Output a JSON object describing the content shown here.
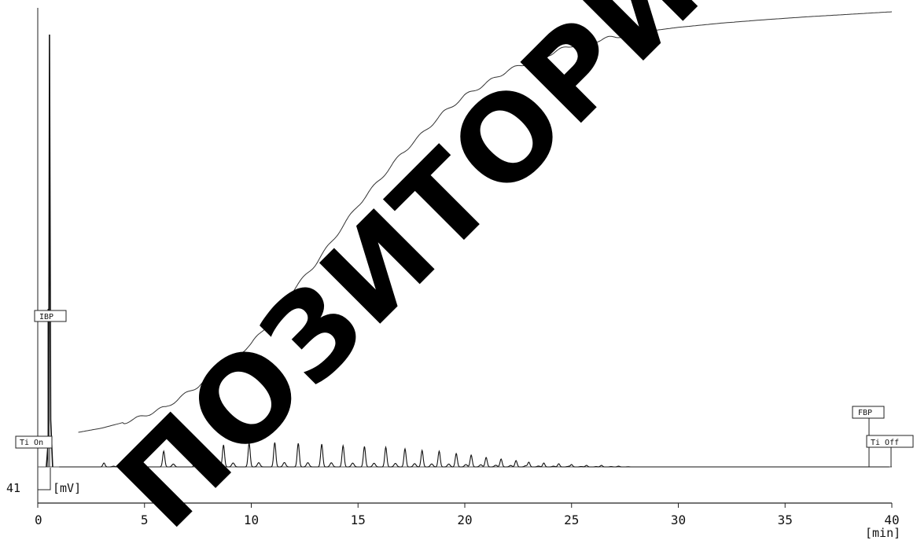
{
  "chart_data": {
    "type": "line",
    "x_unit": "[min]",
    "y_unit": "[mV]",
    "y_offset_label": "41",
    "xlim": [
      0,
      40
    ],
    "x_ticks": [
      "0",
      "5",
      "10",
      "15",
      "20",
      "25",
      "30",
      "35",
      "40"
    ],
    "grid": false,
    "markers": [
      {
        "label": "IBP",
        "x": 0.55
      },
      {
        "label": "Ti On",
        "x": 0.5
      },
      {
        "label": "FBP",
        "x": 38.9
      },
      {
        "label": "Ti Off",
        "x": 39.9
      }
    ],
    "series": [
      {
        "kind": "chromatogram",
        "solvent_peak": {
          "x": 0.55,
          "height": 550
        },
        "peaks": [
          {
            "x": 3.1,
            "h": 5
          },
          {
            "x": 4.5,
            "h": 11
          },
          {
            "x": 5.9,
            "h": 20
          },
          {
            "x": 7.4,
            "h": 25
          },
          {
            "x": 8.7,
            "h": 28
          },
          {
            "x": 9.9,
            "h": 30
          },
          {
            "x": 11.1,
            "h": 31
          },
          {
            "x": 12.2,
            "h": 30
          },
          {
            "x": 13.3,
            "h": 29
          },
          {
            "x": 14.3,
            "h": 27
          },
          {
            "x": 15.3,
            "h": 26
          },
          {
            "x": 16.3,
            "h": 25
          },
          {
            "x": 17.2,
            "h": 23
          },
          {
            "x": 18.0,
            "h": 21
          },
          {
            "x": 18.8,
            "h": 20
          },
          {
            "x": 19.6,
            "h": 17
          },
          {
            "x": 20.3,
            "h": 15
          },
          {
            "x": 21.0,
            "h": 12
          },
          {
            "x": 21.7,
            "h": 10
          },
          {
            "x": 22.4,
            "h": 8
          },
          {
            "x": 23.0,
            "h": 6
          },
          {
            "x": 23.7,
            "h": 5
          },
          {
            "x": 24.4,
            "h": 4
          },
          {
            "x": 25.0,
            "h": 3
          },
          {
            "x": 25.7,
            "h": 2
          },
          {
            "x": 26.4,
            "h": 2
          },
          {
            "x": 27.2,
            "h": 1
          }
        ]
      },
      {
        "kind": "cumulative",
        "points": [
          [
            1.9,
            0
          ],
          [
            3.0,
            1
          ],
          [
            4.5,
            3
          ],
          [
            6.0,
            6
          ],
          [
            7.5,
            11
          ],
          [
            8.5,
            15
          ],
          [
            10.0,
            21
          ],
          [
            11.0,
            27
          ],
          [
            12.0,
            34
          ],
          [
            13.0,
            40
          ],
          [
            14.0,
            47
          ],
          [
            15.0,
            54
          ],
          [
            16.0,
            60
          ],
          [
            17.0,
            66
          ],
          [
            18.0,
            71
          ],
          [
            19.0,
            76
          ],
          [
            20.0,
            80
          ],
          [
            21.0,
            83
          ],
          [
            22.0,
            86
          ],
          [
            23.0,
            88
          ],
          [
            24.0,
            90
          ],
          [
            25.0,
            92
          ],
          [
            26.0,
            93
          ],
          [
            27.0,
            94
          ],
          [
            28.0,
            95
          ],
          [
            30.0,
            96.3
          ],
          [
            32.0,
            97.3
          ],
          [
            34.0,
            98.1
          ],
          [
            36.0,
            98.8
          ],
          [
            38.0,
            99.4
          ],
          [
            40.0,
            100
          ]
        ]
      }
    ]
  },
  "watermark": "ПОЗИТОРИЙ"
}
